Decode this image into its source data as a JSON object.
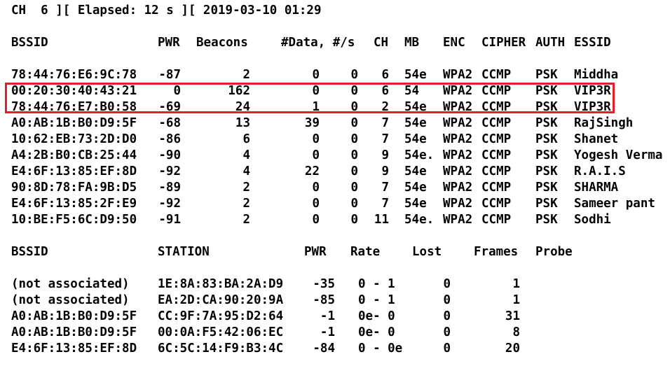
{
  "status_line": "CH  6 ][ Elapsed: 12 s ][ 2019-03-10 01:29",
  "ap_table": {
    "headers": {
      "bssid": "BSSID",
      "pwr": "PWR",
      "beacons": "Beacons",
      "data": "#Data, #/s",
      "ch": "CH",
      "mb": "MB",
      "enc": "ENC",
      "cipher": "CIPHER",
      "auth": "AUTH",
      "essid": "ESSID"
    },
    "rows": [
      {
        "bssid": "78:44:76:E6:9C:78",
        "pwr": "-87",
        "beacons": "2",
        "data": "0",
        "s": "0",
        "ch": "6",
        "mb": "54e",
        "enc": "WPA2",
        "cipher": "CCMP",
        "auth": "PSK",
        "essid": "Middha"
      },
      {
        "bssid": "00:20:30:40:43:21",
        "pwr": "0",
        "beacons": "162",
        "data": "0",
        "s": "0",
        "ch": "6",
        "mb": "54",
        "enc": "WPA2",
        "cipher": "CCMP",
        "auth": "PSK",
        "essid": "VIP3R"
      },
      {
        "bssid": "78:44:76:E7:B0:58",
        "pwr": "-69",
        "beacons": "24",
        "data": "1",
        "s": "0",
        "ch": "2",
        "mb": "54e",
        "enc": "WPA2",
        "cipher": "CCMP",
        "auth": "PSK",
        "essid": "VIP3R"
      },
      {
        "bssid": "A0:AB:1B:B0:D9:5F",
        "pwr": "-68",
        "beacons": "13",
        "data": "39",
        "s": "0",
        "ch": "7",
        "mb": "54e",
        "enc": "WPA2",
        "cipher": "CCMP",
        "auth": "PSK",
        "essid": "RajSingh"
      },
      {
        "bssid": "10:62:EB:73:2D:D0",
        "pwr": "-86",
        "beacons": "6",
        "data": "0",
        "s": "0",
        "ch": "7",
        "mb": "54e",
        "enc": "WPA2",
        "cipher": "CCMP",
        "auth": "PSK",
        "essid": "Shanet"
      },
      {
        "bssid": "A4:2B:B0:CB:25:44",
        "pwr": "-90",
        "beacons": "4",
        "data": "0",
        "s": "0",
        "ch": "9",
        "mb": "54e.",
        "enc": "WPA2",
        "cipher": "CCMP",
        "auth": "PSK",
        "essid": "Yogesh Verma"
      },
      {
        "bssid": "E4:6F:13:85:EF:8D",
        "pwr": "-92",
        "beacons": "4",
        "data": "22",
        "s": "0",
        "ch": "9",
        "mb": "54e",
        "enc": "WPA2",
        "cipher": "CCMP",
        "auth": "PSK",
        "essid": "R.A.I.S"
      },
      {
        "bssid": "90:8D:78:FA:9B:D5",
        "pwr": "-89",
        "beacons": "2",
        "data": "0",
        "s": "0",
        "ch": "7",
        "mb": "54e",
        "enc": "WPA2",
        "cipher": "CCMP",
        "auth": "PSK",
        "essid": "SHARMA"
      },
      {
        "bssid": "E4:6F:13:85:2F:E9",
        "pwr": "-92",
        "beacons": "2",
        "data": "0",
        "s": "0",
        "ch": "7",
        "mb": "54e",
        "enc": "WPA2",
        "cipher": "CCMP",
        "auth": "PSK",
        "essid": "Sameer pant"
      },
      {
        "bssid": "10:BE:F5:6C:D9:50",
        "pwr": "-91",
        "beacons": "2",
        "data": "0",
        "s": "0",
        "ch": "11",
        "mb": "54e.",
        "enc": "WPA2",
        "cipher": "CCMP",
        "auth": "PSK",
        "essid": "Sodhi"
      }
    ]
  },
  "station_table": {
    "headers": {
      "bssid": "BSSID",
      "station": "STATION",
      "pwr": "PWR",
      "rate": "Rate",
      "lost": "Lost",
      "frames": "Frames",
      "probe": "Probe"
    },
    "rows": [
      {
        "bssid": "(not associated)",
        "station": "1E:8A:83:BA:2A:D9",
        "pwr": "-35",
        "rate": "0 - 1",
        "lost": "0",
        "frames": "1"
      },
      {
        "bssid": "(not associated)",
        "station": "EA:2D:CA:90:20:9A",
        "pwr": "-85",
        "rate": "0 - 1",
        "lost": "0",
        "frames": "1"
      },
      {
        "bssid": "A0:AB:1B:B0:D9:5F",
        "station": "CC:9F:7A:95:D2:64",
        "pwr": "-1",
        "rate": "0e- 0",
        "lost": "0",
        "frames": "31"
      },
      {
        "bssid": "A0:AB:1B:B0:D9:5F",
        "station": "00:0A:F5:42:06:EC",
        "pwr": "-1",
        "rate": "0e- 0",
        "lost": "0",
        "frames": "8"
      },
      {
        "bssid": "E4:6F:13:85:EF:8D",
        "station": "6C:5C:14:F9:B3:4C",
        "pwr": "-84",
        "rate": "0 - 0e",
        "lost": "0",
        "frames": "20"
      }
    ]
  },
  "highlight": {
    "color": "#e0202a",
    "rows": [
      "00:20:30:40:43:21",
      "78:44:76:E7:B0:58"
    ]
  }
}
